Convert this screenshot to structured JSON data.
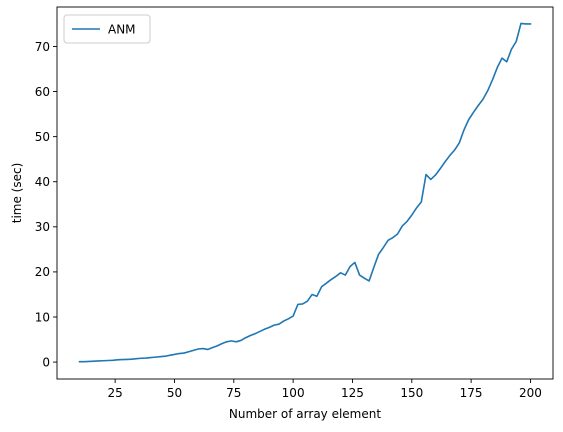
{
  "chart_data": {
    "type": "line",
    "title": "",
    "xlabel": "Number of array element",
    "ylabel": "time (sec)",
    "xlim": [
      0.5,
      209.5
    ],
    "ylim": [
      -3.75,
      78.75
    ],
    "xticks": [
      25,
      50,
      75,
      100,
      125,
      150,
      175,
      200
    ],
    "yticks": [
      0,
      10,
      20,
      30,
      40,
      50,
      60,
      70
    ],
    "grid": false,
    "legend_position": "top-left",
    "series": [
      {
        "name": "ANM",
        "color": "#1f77b4",
        "x": [
          10,
          12,
          14,
          16,
          18,
          20,
          22,
          24,
          26,
          28,
          30,
          32,
          34,
          36,
          38,
          40,
          42,
          44,
          46,
          48,
          50,
          52,
          54,
          56,
          58,
          60,
          62,
          64,
          66,
          68,
          70,
          72,
          74,
          76,
          78,
          80,
          82,
          84,
          86,
          88,
          90,
          92,
          94,
          96,
          98,
          100,
          102,
          104,
          106,
          108,
          110,
          112,
          114,
          116,
          118,
          120,
          122,
          124,
          126,
          128,
          130,
          132,
          134,
          136,
          138,
          140,
          142,
          144,
          146,
          148,
          150,
          152,
          154,
          156,
          158,
          160,
          162,
          164,
          166,
          168,
          170,
          172,
          174,
          176,
          178,
          180,
          182,
          184,
          186,
          188,
          190,
          192,
          194,
          196,
          198,
          200
        ],
        "y": [
          0.1,
          0.1,
          0.15,
          0.2,
          0.25,
          0.3,
          0.35,
          0.4,
          0.5,
          0.55,
          0.6,
          0.65,
          0.75,
          0.85,
          0.9,
          1.0,
          1.1,
          1.2,
          1.3,
          1.5,
          1.7,
          1.9,
          2.0,
          2.3,
          2.6,
          2.9,
          3.0,
          2.8,
          3.2,
          3.6,
          4.1,
          4.5,
          4.7,
          4.5,
          4.8,
          5.4,
          5.9,
          6.3,
          6.8,
          7.3,
          7.7,
          8.2,
          8.4,
          9.1,
          9.6,
          10.2,
          12.8,
          12.9,
          13.5,
          15.0,
          14.6,
          16.7,
          17.5,
          18.3,
          19.0,
          19.8,
          19.3,
          21.2,
          22.1,
          19.3,
          18.6,
          18.0,
          21.0,
          23.9,
          25.4,
          27.0,
          27.6,
          28.4,
          30.2,
          31.2,
          32.6,
          34.2,
          35.5,
          41.6,
          40.5,
          41.5,
          42.9,
          44.4,
          45.8,
          47.0,
          48.6,
          51.5,
          53.8,
          55.4,
          56.9,
          58.3,
          60.2,
          62.6,
          65.3,
          67.4,
          66.6,
          69.4,
          71.1,
          75.1,
          75.0,
          75.0
        ]
      }
    ]
  }
}
